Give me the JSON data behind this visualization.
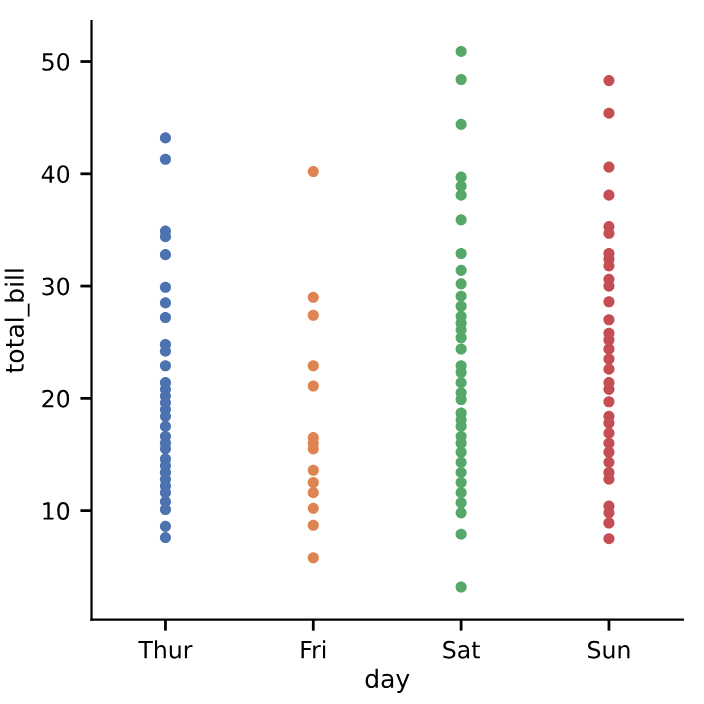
{
  "chart_data": {
    "type": "scatter",
    "xlabel": "day",
    "ylabel": "total_bill",
    "categories": [
      "Thur",
      "Fri",
      "Sat",
      "Sun"
    ],
    "series": [
      {
        "color": "#4c72b0",
        "x": [
          "Thur",
          "Thur",
          "Thur",
          "Thur",
          "Thur",
          "Thur",
          "Thur",
          "Thur",
          "Thur",
          "Thur",
          "Thur",
          "Thur",
          "Thur",
          "Thur",
          "Thur",
          "Thur",
          "Thur",
          "Thur",
          "Thur",
          "Thur",
          "Thur",
          "Thur",
          "Thur",
          "Thur",
          "Thur",
          "Thur",
          "Thur",
          "Thur",
          "Thur",
          "Thur",
          "Thur"
        ],
        "values": [
          43.2,
          41.3,
          34.9,
          34.4,
          32.8,
          29.9,
          28.5,
          27.2,
          24.8,
          24.2,
          22.9,
          21.4,
          20.8,
          20.2,
          19.6,
          19.0,
          18.4,
          17.5,
          16.6,
          16.0,
          15.5,
          14.6,
          14.0,
          13.4,
          12.8,
          12.2,
          11.6,
          10.8,
          10.1,
          8.6,
          7.6
        ]
      },
      {
        "color": "#dd8452",
        "x": [
          "Fri",
          "Fri",
          "Fri",
          "Fri",
          "Fri",
          "Fri",
          "Fri",
          "Fri",
          "Fri",
          "Fri",
          "Fri",
          "Fri",
          "Fri",
          "Fri",
          "Fri"
        ],
        "values": [
          40.2,
          29.0,
          27.4,
          22.9,
          null,
          21.1,
          16.5,
          16.0,
          15.5,
          13.6,
          12.5,
          11.6,
          10.2,
          8.7,
          5.8
        ]
      },
      {
        "color": "#55a868",
        "x": [
          "Sat",
          "Sat",
          "Sat",
          "Sat",
          "Sat",
          "Sat",
          "Sat",
          "Sat",
          "Sat",
          "Sat",
          "Sat",
          "Sat",
          "Sat",
          "Sat",
          "Sat",
          "Sat",
          "Sat",
          "Sat",
          "Sat",
          "Sat",
          "Sat",
          "Sat",
          "Sat",
          "Sat",
          "Sat",
          "Sat",
          "Sat",
          "Sat",
          "Sat",
          "Sat",
          "Sat",
          "Sat",
          "Sat",
          "Sat",
          "Sat",
          "Sat",
          "Sat"
        ],
        "values": [
          50.9,
          48.4,
          44.4,
          39.7,
          38.9,
          38.1,
          35.9,
          32.9,
          31.4,
          30.2,
          29.1,
          28.2,
          27.3,
          26.7,
          26.1,
          25.4,
          24.4,
          22.9,
          22.3,
          21.4,
          20.5,
          19.9,
          18.7,
          18.1,
          17.5,
          16.6,
          16.0,
          15.2,
          14.3,
          13.4,
          12.5,
          11.6,
          10.7,
          9.8,
          7.9,
          null,
          3.2
        ]
      },
      {
        "color": "#c44e52",
        "x": [
          "Sun",
          "Sun",
          "Sun",
          "Sun",
          "Sun",
          "Sun",
          "Sun",
          "Sun",
          "Sun",
          "Sun",
          "Sun",
          "Sun",
          "Sun",
          "Sun",
          "Sun",
          "Sun",
          "Sun",
          "Sun",
          "Sun",
          "Sun",
          "Sun",
          "Sun",
          "Sun",
          "Sun",
          "Sun",
          "Sun",
          "Sun",
          "Sun",
          "Sun",
          "Sun",
          "Sun",
          "Sun",
          "Sun"
        ],
        "values": [
          48.3,
          45.4,
          40.6,
          38.1,
          35.3,
          34.7,
          32.9,
          32.4,
          31.8,
          30.6,
          30.0,
          28.6,
          27.0,
          25.8,
          25.2,
          24.4,
          23.5,
          22.6,
          21.4,
          20.8,
          19.7,
          18.4,
          17.8,
          16.9,
          16.0,
          15.2,
          14.3,
          13.4,
          12.8,
          10.4,
          9.8,
          8.9,
          7.5
        ]
      }
    ],
    "ylim": [
      0.3,
      53.6
    ],
    "yticks": [
      10,
      20,
      30,
      40,
      50
    ],
    "grid": false,
    "marker": "circle"
  }
}
